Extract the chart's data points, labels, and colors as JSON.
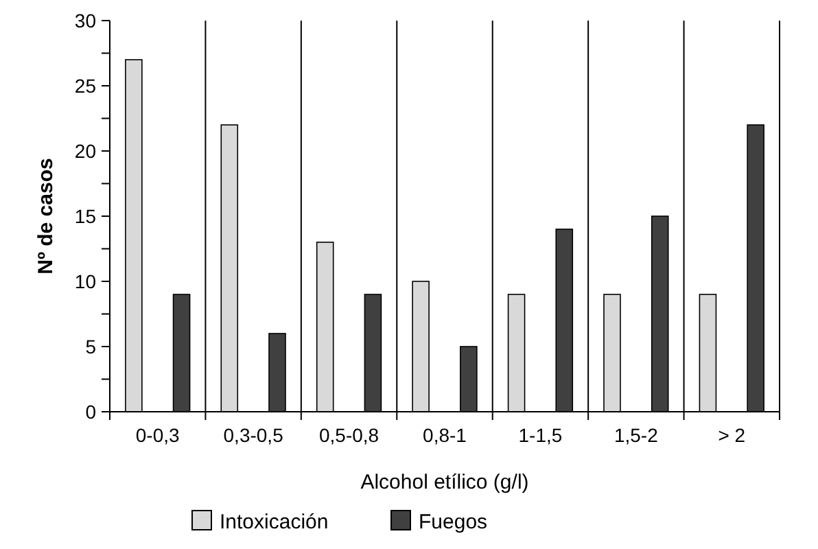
{
  "chart_data": {
    "type": "bar",
    "xlabel": "Alcohol etílico (g/l)",
    "ylabel": "Nº de casos",
    "categories": [
      "0-0,3",
      "0,3-0,5",
      "0,5-0,8",
      "0,8-1",
      "1-1,5",
      "1,5-2",
      "> 2"
    ],
    "series": [
      {
        "name": "Intoxicación",
        "color": "#d9d9d9",
        "values": [
          27,
          22,
          13,
          10,
          9,
          9,
          9
        ]
      },
      {
        "name": "Fuegos",
        "color": "#404040",
        "values": [
          9,
          6,
          9,
          5,
          14,
          15,
          22
        ]
      }
    ],
    "ylim": [
      0,
      30
    ],
    "yticks": [
      0,
      {
        "value": 2.5,
        "label": null
      },
      5,
      {
        "value": 7.5,
        "label": null
      },
      10,
      {
        "value": 12.5,
        "label": null
      },
      15,
      {
        "value": 17.5,
        "label": null
      },
      20,
      {
        "value": 22.5,
        "label": null
      },
      25,
      {
        "value": 27.5,
        "label": null
      },
      30
    ],
    "grid": "x",
    "legend": "bottom"
  }
}
